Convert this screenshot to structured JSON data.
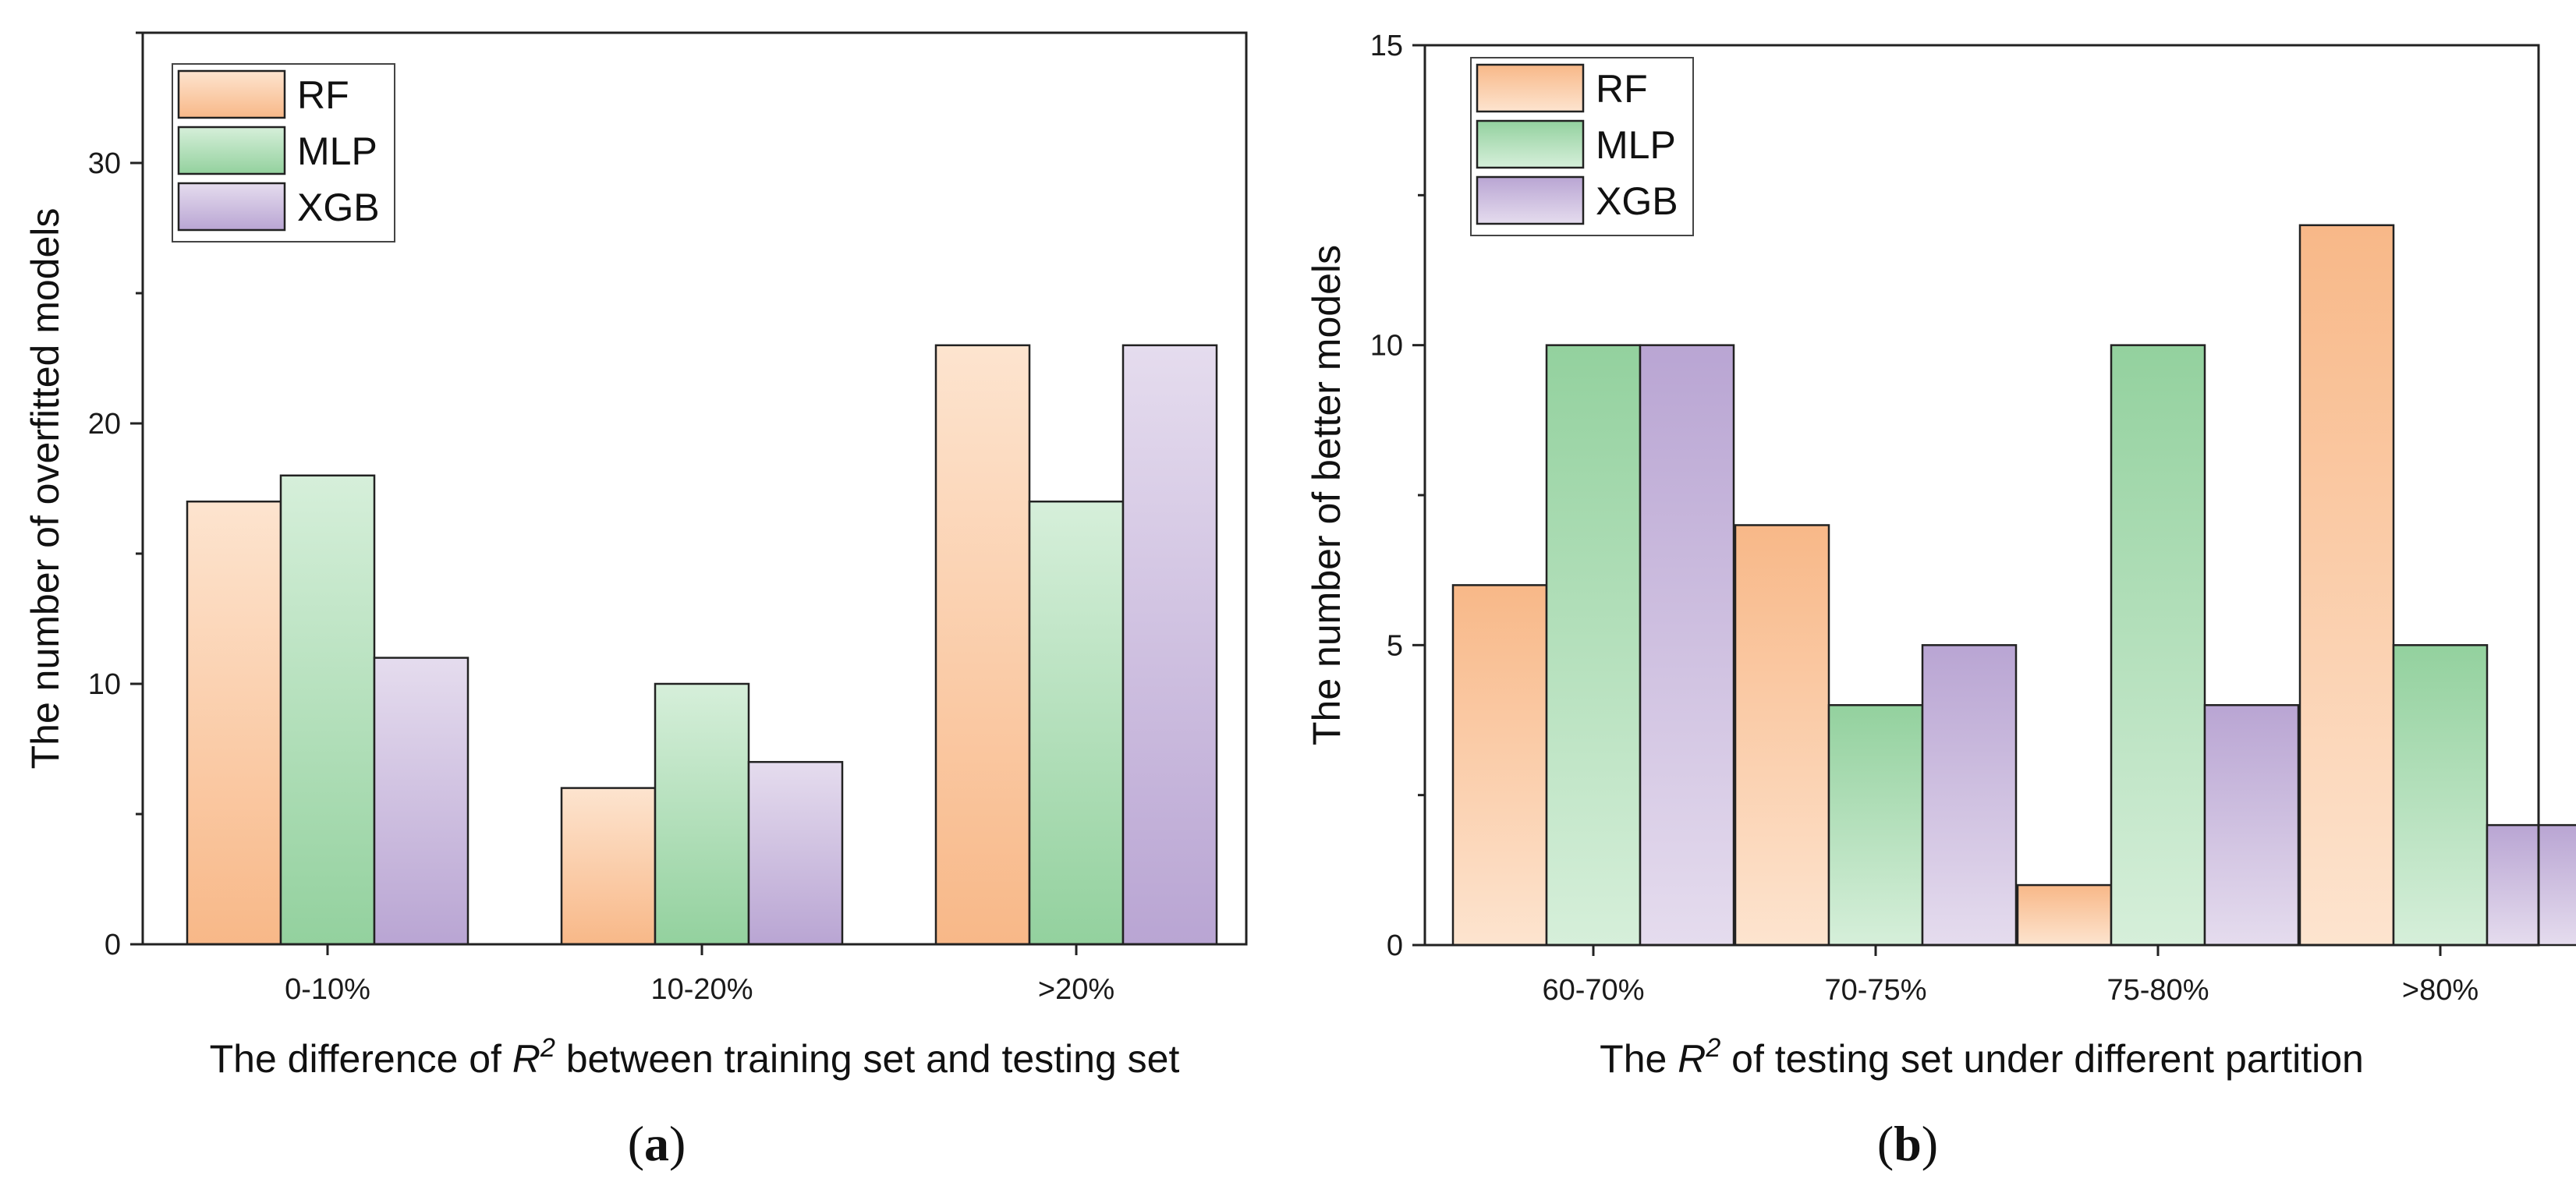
{
  "chart_data": [
    {
      "type": "bar",
      "panel": "(a)",
      "panel_letter": "a",
      "categories": [
        "0-10%",
        "10-20%",
        ">20%"
      ],
      "series": [
        {
          "name": "RF",
          "values": [
            17,
            6,
            23
          ]
        },
        {
          "name": "MLP",
          "values": [
            18,
            10,
            17
          ]
        },
        {
          "name": "XGB",
          "values": [
            11,
            7,
            23
          ]
        }
      ],
      "xlabel_parts": [
        "The difference of ",
        "R",
        "2",
        " between training set and testing set"
      ],
      "ylabel": "The number of overfitted models",
      "ylim": [
        0,
        35
      ],
      "yticks": [
        0,
        10,
        20,
        30
      ],
      "minor_step": 5,
      "legend_position": "top-left"
    },
    {
      "type": "bar",
      "panel": "(b)",
      "panel_letter": "b",
      "categories": [
        "60-70%",
        "70-75%",
        "75-80%",
        ">80%"
      ],
      "series": [
        {
          "name": "RF",
          "values": [
            6,
            7,
            1,
            12
          ]
        },
        {
          "name": "MLP",
          "values": [
            10,
            4,
            10,
            5
          ]
        },
        {
          "name": "XGB",
          "values": [
            10,
            5,
            4,
            2
          ]
        }
      ],
      "xlabel_parts": [
        "The ",
        "R",
        "2",
        " of testing set under different partition"
      ],
      "ylabel": "The number of better models",
      "ylim": [
        0,
        15
      ],
      "yticks": [
        0,
        5,
        10,
        15
      ],
      "minor_step": 2.5,
      "legend_position": "top-left"
    }
  ],
  "colors": {
    "RF": {
      "top": "#fde4cf",
      "bottom": "#f8b888"
    },
    "MLP": {
      "top": "#d6efda",
      "bottom": "#93d19e"
    },
    "XGB": {
      "top": "#e5dcee",
      "bottom": "#b9a5d3"
    },
    "RF_b": {
      "top": "#f8b888",
      "bottom": "#fde4cf"
    },
    "MLP_b": {
      "top": "#93d19e",
      "bottom": "#d6efda"
    },
    "XGB_b": {
      "top": "#b9a5d3",
      "bottom": "#e5dcee"
    },
    "stroke": "#222222"
  }
}
